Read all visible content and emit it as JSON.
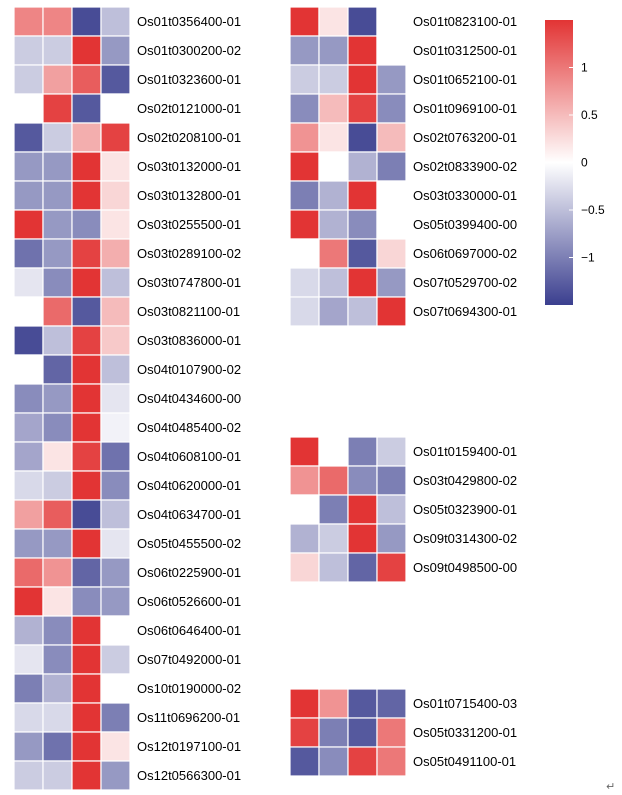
{
  "chart_data": {
    "type": "heatmap",
    "colors": {
      "low": "#3b3f8f",
      "mid": "#ffffff",
      "high": "#e23434"
    },
    "color_range": [
      -1.5,
      1.5
    ],
    "colorbar_ticks": [
      {
        "value": 1,
        "label": "1"
      },
      {
        "value": 0.5,
        "label": "0.5"
      },
      {
        "value": 0,
        "label": "0"
      },
      {
        "value": -0.5,
        "label": "−0.5"
      },
      {
        "value": -1,
        "label": "−1"
      }
    ],
    "panels": [
      {
        "rows": [
          {
            "label": "Os01t0356400-01",
            "values": [
              0.9,
              0.9,
              -1.4,
              -0.5
            ]
          },
          {
            "label": "Os01t0300200-02",
            "values": [
              -0.4,
              -0.4,
              1.5,
              -0.8
            ]
          },
          {
            "label": "Os01t0323600-01",
            "values": [
              -0.4,
              0.7,
              1.2,
              -1.3
            ]
          },
          {
            "label": "Os02t0121000-01",
            "values": [
              0,
              1.4,
              -1.3,
              0
            ]
          },
          {
            "label": "Os02t0208100-01",
            "values": [
              -1.3,
              -0.4,
              0.6,
              1.4
            ]
          },
          {
            "label": "Os03t0132000-01",
            "values": [
              -0.8,
              -0.8,
              1.5,
              0.2
            ]
          },
          {
            "label": "Os03t0132800-01",
            "values": [
              -0.8,
              -0.8,
              1.5,
              0.3
            ]
          },
          {
            "label": "Os03t0255500-01",
            "values": [
              1.5,
              -0.8,
              -0.9,
              0.2
            ]
          },
          {
            "label": "Os03t0289100-02",
            "values": [
              -1.1,
              -0.8,
              1.4,
              0.6
            ]
          },
          {
            "label": "Os03t0747800-01",
            "values": [
              -0.2,
              -0.9,
              1.5,
              -0.5
            ]
          },
          {
            "label": "Os03t0821100-01",
            "values": [
              0,
              1.1,
              -1.3,
              0.5
            ]
          },
          {
            "label": "Os03t0836000-01",
            "values": [
              -1.4,
              -0.5,
              1.4,
              0.4
            ]
          },
          {
            "label": "Os04t0107900-02",
            "values": [
              0,
              -1.2,
              1.5,
              -0.5
            ]
          },
          {
            "label": "Os04t0434600-00",
            "values": [
              -0.9,
              -0.8,
              1.5,
              -0.2
            ]
          },
          {
            "label": "Os04t0485400-02",
            "values": [
              -0.7,
              -0.9,
              1.5,
              -0.1
            ]
          },
          {
            "label": "Os04t0608100-01",
            "values": [
              -0.7,
              0.2,
              1.4,
              -1.1
            ]
          },
          {
            "label": "Os04t0620000-01",
            "values": [
              -0.3,
              -0.4,
              1.5,
              -0.9
            ]
          },
          {
            "label": "Os04t0634700-01",
            "values": [
              0.7,
              1.2,
              -1.4,
              -0.5
            ]
          },
          {
            "label": "Os05t0455500-02",
            "values": [
              -0.8,
              -0.8,
              1.5,
              -0.2
            ]
          },
          {
            "label": "Os06t0225900-01",
            "values": [
              1.1,
              0.8,
              -1.2,
              -0.8
            ]
          },
          {
            "label": "Os06t0526600-01",
            "values": [
              1.5,
              0.2,
              -0.9,
              -0.8
            ]
          },
          {
            "label": "Os06t0646400-01",
            "values": [
              -0.6,
              -0.9,
              1.5,
              0
            ]
          },
          {
            "label": "Os07t0492000-01",
            "values": [
              -0.2,
              -0.9,
              1.5,
              -0.4
            ]
          },
          {
            "label": "Os10t0190000-02",
            "values": [
              -1.0,
              -0.6,
              1.5,
              0
            ]
          },
          {
            "label": "Os11t0696200-01",
            "values": [
              -0.3,
              -0.3,
              1.5,
              -1.0
            ]
          },
          {
            "label": "Os12t0197100-01",
            "values": [
              -0.8,
              -1.1,
              1.5,
              0.2
            ]
          },
          {
            "label": "Os12t0566300-01",
            "values": [
              -0.4,
              -0.4,
              1.5,
              -0.8
            ]
          }
        ]
      },
      {
        "rows": [
          {
            "label": "Os01t0823100-01",
            "values": [
              1.5,
              0.2,
              -1.4,
              0
            ]
          },
          {
            "label": "Os01t0312500-01",
            "values": [
              -0.8,
              -0.8,
              1.5,
              0
            ]
          },
          {
            "label": "Os01t0652100-01",
            "values": [
              -0.4,
              -0.4,
              1.5,
              -0.8
            ]
          },
          {
            "label": "Os01t0969100-01",
            "values": [
              -0.9,
              0.5,
              1.4,
              -0.9
            ]
          },
          {
            "label": "Os02t0763200-01",
            "values": [
              0.8,
              0.2,
              -1.4,
              0.5
            ]
          },
          {
            "label": "Os02t0833900-02",
            "values": [
              1.5,
              0,
              -0.6,
              -1.0
            ]
          },
          {
            "label": "Os03t0330000-01",
            "values": [
              -1.0,
              -0.6,
              1.5,
              0
            ]
          },
          {
            "label": "Os05t0399400-00",
            "values": [
              1.5,
              -0.6,
              -0.9,
              0
            ]
          },
          {
            "label": "Os06t0697000-02",
            "values": [
              0,
              1.0,
              -1.3,
              0.3
            ]
          },
          {
            "label": "Os07t0529700-02",
            "values": [
              -0.3,
              -0.5,
              1.5,
              -0.8
            ]
          },
          {
            "label": "Os07t0694300-01",
            "values": [
              -0.3,
              -0.7,
              -0.5,
              1.5
            ]
          }
        ]
      },
      {
        "rows": [
          {
            "label": "Os01t0159400-01",
            "values": [
              1.5,
              0,
              -1.0,
              -0.4
            ]
          },
          {
            "label": "Os03t0429800-02",
            "values": [
              0.8,
              1.1,
              -0.9,
              -1.0
            ]
          },
          {
            "label": "Os05t0323900-01",
            "values": [
              0,
              -1.0,
              1.5,
              -0.5
            ]
          },
          {
            "label": "Os09t0314300-02",
            "values": [
              -0.6,
              -0.4,
              1.5,
              -0.8
            ]
          },
          {
            "label": "Os09t0498500-00",
            "values": [
              0.3,
              -0.5,
              -1.2,
              1.4
            ]
          }
        ]
      },
      {
        "rows": [
          {
            "label": "Os01t0715400-03",
            "values": [
              1.5,
              0.8,
              -1.3,
              -1.2
            ]
          },
          {
            "label": "Os05t0331200-01",
            "values": [
              1.4,
              -1.0,
              -1.3,
              1.0
            ]
          },
          {
            "label": "Os05t0491100-01",
            "values": [
              -1.3,
              -0.9,
              1.4,
              1.0
            ]
          }
        ]
      }
    ]
  },
  "footer": {
    "return_mark": "↵"
  }
}
